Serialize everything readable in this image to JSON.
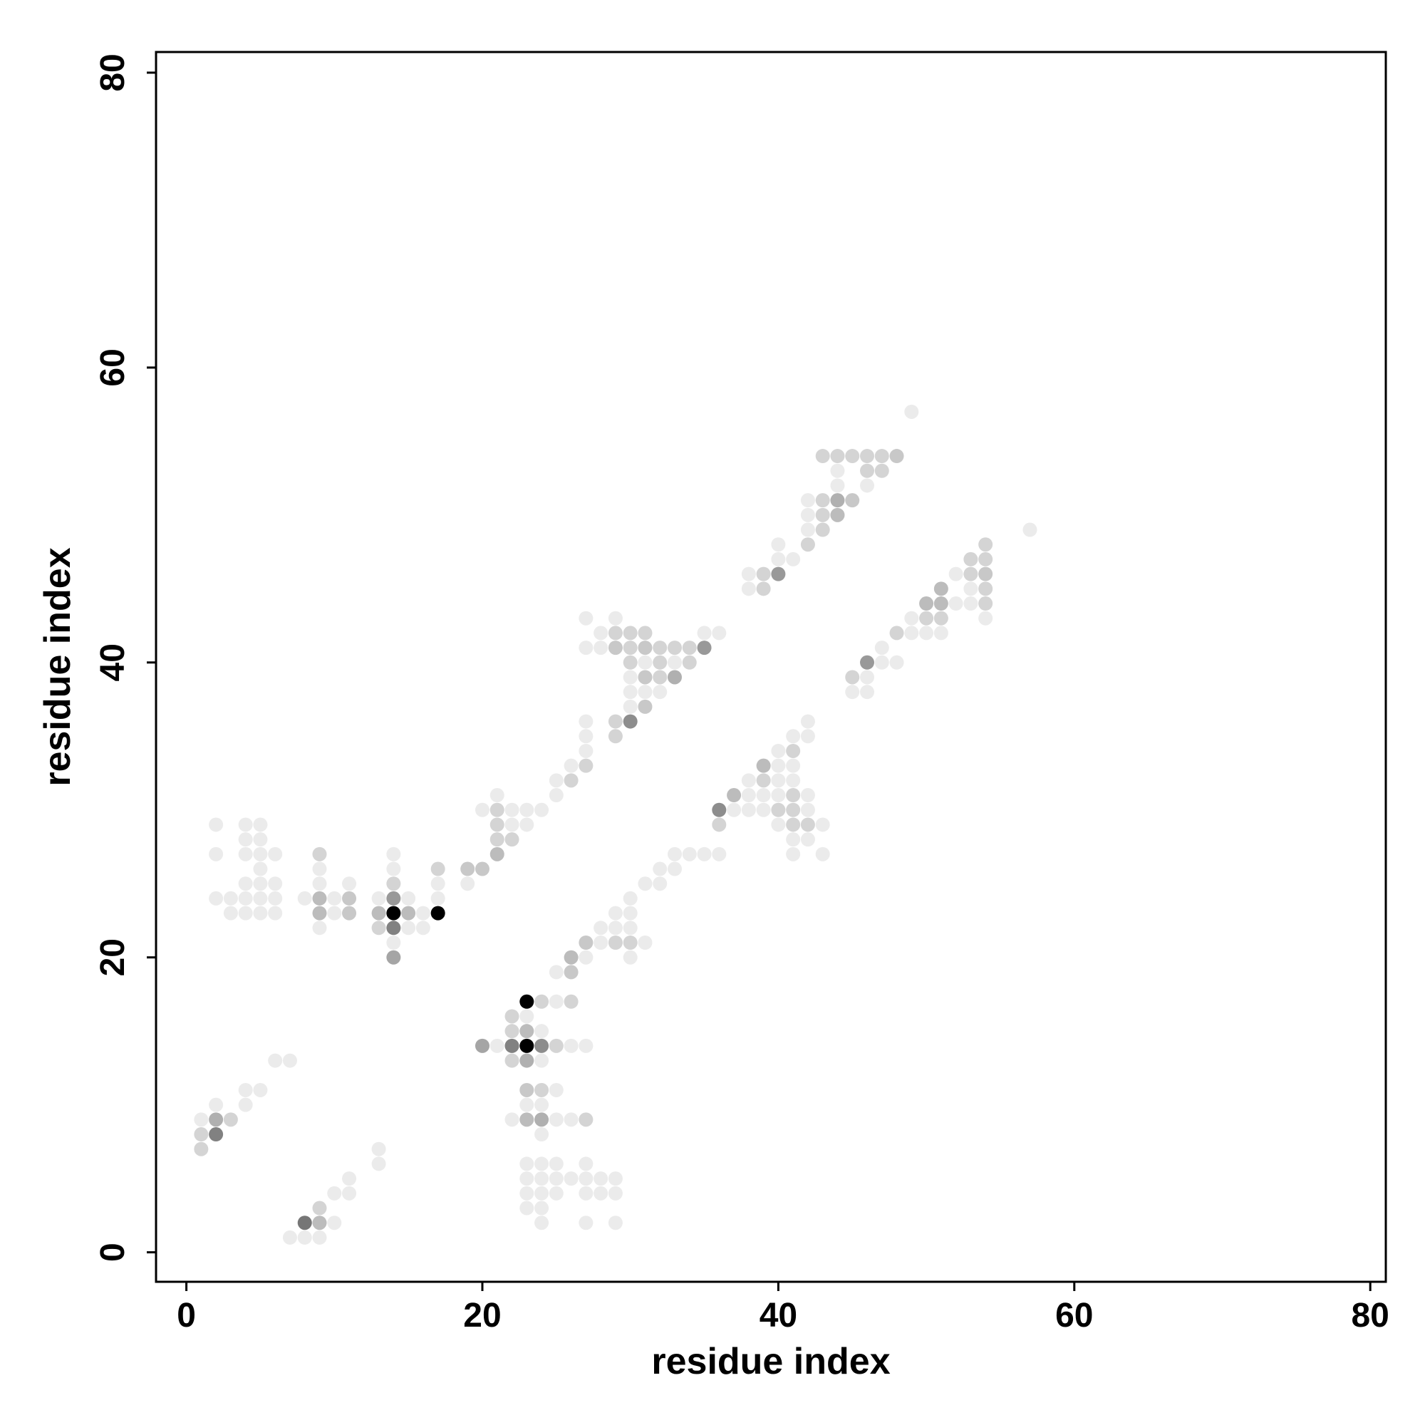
{
  "chart_data": {
    "type": "scatter",
    "x_label": "residue index",
    "y_label": "residue index",
    "xlim": [
      -2.05,
      81.05
    ],
    "ylim": [
      -2,
      81.4
    ],
    "xticks": [
      0,
      20,
      40,
      60,
      80
    ],
    "yticks": [
      0,
      20,
      40,
      60,
      80
    ],
    "color": "#000000",
    "points": [
      [
        49,
        57,
        0
      ],
      [
        43,
        54,
        0.1
      ],
      [
        44,
        54,
        0.1
      ],
      [
        45,
        54,
        0.1
      ],
      [
        46,
        54,
        0.1
      ],
      [
        47,
        54,
        0.1
      ],
      [
        48,
        54,
        0.15
      ],
      [
        44,
        53,
        0
      ],
      [
        46,
        53,
        0.1
      ],
      [
        47,
        53,
        0.1
      ],
      [
        44,
        52,
        0
      ],
      [
        46,
        52,
        0
      ],
      [
        42,
        51,
        0
      ],
      [
        43,
        51,
        0.1
      ],
      [
        44,
        51,
        0.25
      ],
      [
        45,
        51,
        0.15
      ],
      [
        42,
        50,
        0
      ],
      [
        43,
        50,
        0.1
      ],
      [
        44,
        50,
        0.2
      ],
      [
        42,
        49,
        0
      ],
      [
        43,
        49,
        0.1
      ],
      [
        57,
        49,
        0
      ],
      [
        40,
        48,
        0
      ],
      [
        42,
        48,
        0.1
      ],
      [
        54,
        48,
        0.1
      ],
      [
        40,
        47,
        0
      ],
      [
        41,
        47,
        0
      ],
      [
        53,
        47,
        0.1
      ],
      [
        54,
        47,
        0.1
      ],
      [
        38,
        46,
        0
      ],
      [
        39,
        46,
        0.1
      ],
      [
        40,
        46,
        0.35
      ],
      [
        52,
        46,
        0
      ],
      [
        53,
        46,
        0.1
      ],
      [
        54,
        46,
        0.15
      ],
      [
        38,
        45,
        0
      ],
      [
        39,
        45,
        0.1
      ],
      [
        51,
        45,
        0.2
      ],
      [
        53,
        45,
        0
      ],
      [
        54,
        45,
        0.1
      ],
      [
        50,
        44,
        0.2
      ],
      [
        51,
        44,
        0.2
      ],
      [
        52,
        44,
        0
      ],
      [
        53,
        44,
        0
      ],
      [
        54,
        44,
        0.1
      ],
      [
        27,
        43,
        0
      ],
      [
        29,
        43,
        0
      ],
      [
        49,
        43,
        0
      ],
      [
        50,
        43,
        0.1
      ],
      [
        51,
        43,
        0.1
      ],
      [
        54,
        43,
        0
      ],
      [
        28,
        42,
        0
      ],
      [
        29,
        42,
        0.1
      ],
      [
        30,
        42,
        0.1
      ],
      [
        31,
        42,
        0.1
      ],
      [
        35,
        42,
        0
      ],
      [
        36,
        42,
        0
      ],
      [
        48,
        42,
        0.1
      ],
      [
        49,
        42,
        0
      ],
      [
        50,
        42,
        0
      ],
      [
        51,
        42,
        0
      ],
      [
        27,
        41,
        0
      ],
      [
        28,
        41,
        0
      ],
      [
        29,
        41,
        0.15
      ],
      [
        30,
        41,
        0.1
      ],
      [
        31,
        41,
        0.15
      ],
      [
        32,
        41,
        0.1
      ],
      [
        33,
        41,
        0.1
      ],
      [
        34,
        41,
        0.1
      ],
      [
        35,
        41,
        0.35
      ],
      [
        47,
        41,
        0
      ],
      [
        30,
        40,
        0.1
      ],
      [
        31,
        40,
        0
      ],
      [
        32,
        40,
        0.1
      ],
      [
        33,
        40,
        0
      ],
      [
        34,
        40,
        0.1
      ],
      [
        46,
        40,
        0.35
      ],
      [
        47,
        40,
        0
      ],
      [
        48,
        40,
        0
      ],
      [
        30,
        39,
        0
      ],
      [
        31,
        39,
        0.15
      ],
      [
        32,
        39,
        0.1
      ],
      [
        33,
        39,
        0.25
      ],
      [
        45,
        39,
        0.1
      ],
      [
        46,
        39,
        0
      ],
      [
        30,
        38,
        0
      ],
      [
        31,
        38,
        0
      ],
      [
        32,
        38,
        0
      ],
      [
        45,
        38,
        0
      ],
      [
        46,
        38,
        0
      ],
      [
        30,
        37,
        0
      ],
      [
        31,
        37,
        0.15
      ],
      [
        27,
        36,
        0
      ],
      [
        29,
        36,
        0.1
      ],
      [
        30,
        36,
        0.4
      ],
      [
        42,
        36,
        0
      ],
      [
        27,
        35,
        0
      ],
      [
        29,
        35,
        0.1
      ],
      [
        41,
        35,
        0
      ],
      [
        42,
        35,
        0
      ],
      [
        27,
        34,
        0
      ],
      [
        40,
        34,
        0
      ],
      [
        41,
        34,
        0.1
      ],
      [
        26,
        33,
        0
      ],
      [
        27,
        33,
        0.1
      ],
      [
        39,
        33,
        0.2
      ],
      [
        40,
        33,
        0
      ],
      [
        41,
        33,
        0
      ],
      [
        25,
        32,
        0
      ],
      [
        26,
        32,
        0.1
      ],
      [
        38,
        32,
        0
      ],
      [
        39,
        32,
        0.1
      ],
      [
        40,
        32,
        0
      ],
      [
        41,
        32,
        0
      ],
      [
        21,
        31,
        0
      ],
      [
        25,
        31,
        0
      ],
      [
        37,
        31,
        0.2
      ],
      [
        38,
        31,
        0
      ],
      [
        39,
        31,
        0
      ],
      [
        40,
        31,
        0
      ],
      [
        41,
        31,
        0.1
      ],
      [
        42,
        31,
        0
      ],
      [
        20,
        30,
        0
      ],
      [
        21,
        30,
        0.1
      ],
      [
        22,
        30,
        0
      ],
      [
        23,
        30,
        0
      ],
      [
        24,
        30,
        0
      ],
      [
        36,
        30,
        0.4
      ],
      [
        37,
        30,
        0
      ],
      [
        38,
        30,
        0
      ],
      [
        39,
        30,
        0
      ],
      [
        40,
        30,
        0.1
      ],
      [
        41,
        30,
        0.1
      ],
      [
        42,
        30,
        0
      ],
      [
        2,
        29,
        0
      ],
      [
        4,
        29,
        0
      ],
      [
        5,
        29,
        0
      ],
      [
        21,
        29,
        0.1
      ],
      [
        22,
        29,
        0
      ],
      [
        23,
        29,
        0
      ],
      [
        36,
        29,
        0.1
      ],
      [
        40,
        29,
        0
      ],
      [
        41,
        29,
        0.1
      ],
      [
        42,
        29,
        0.1
      ],
      [
        43,
        29,
        0
      ],
      [
        4,
        28,
        0
      ],
      [
        5,
        28,
        0
      ],
      [
        21,
        28,
        0.1
      ],
      [
        22,
        28,
        0.1
      ],
      [
        41,
        28,
        0
      ],
      [
        42,
        28,
        0
      ],
      [
        2,
        27,
        0
      ],
      [
        4,
        27,
        0
      ],
      [
        5,
        27,
        0
      ],
      [
        6,
        27,
        0
      ],
      [
        9,
        27,
        0.1
      ],
      [
        14,
        27,
        0
      ],
      [
        21,
        27,
        0.2
      ],
      [
        33,
        27,
        0
      ],
      [
        34,
        27,
        0
      ],
      [
        35,
        27,
        0
      ],
      [
        36,
        27,
        0
      ],
      [
        41,
        27,
        0
      ],
      [
        43,
        27,
        0
      ],
      [
        5,
        26,
        0
      ],
      [
        9,
        26,
        0
      ],
      [
        14,
        26,
        0
      ],
      [
        17,
        26,
        0.1
      ],
      [
        19,
        26,
        0.15
      ],
      [
        20,
        26,
        0.15
      ],
      [
        32,
        26,
        0
      ],
      [
        33,
        26,
        0
      ],
      [
        4,
        25,
        0
      ],
      [
        5,
        25,
        0
      ],
      [
        6,
        25,
        0
      ],
      [
        9,
        25,
        0
      ],
      [
        11,
        25,
        0
      ],
      [
        14,
        25,
        0.1
      ],
      [
        17,
        25,
        0
      ],
      [
        19,
        25,
        0
      ],
      [
        31,
        25,
        0
      ],
      [
        32,
        25,
        0
      ],
      [
        2,
        24,
        0
      ],
      [
        3,
        24,
        0
      ],
      [
        4,
        24,
        0
      ],
      [
        5,
        24,
        0
      ],
      [
        6,
        24,
        0
      ],
      [
        8,
        24,
        0
      ],
      [
        9,
        24,
        0.2
      ],
      [
        10,
        24,
        0
      ],
      [
        11,
        24,
        0.15
      ],
      [
        13,
        24,
        0
      ],
      [
        14,
        24,
        0.35
      ],
      [
        15,
        24,
        0
      ],
      [
        17,
        24,
        0
      ],
      [
        30,
        24,
        0
      ],
      [
        3,
        23,
        0
      ],
      [
        4,
        23,
        0
      ],
      [
        5,
        23,
        0
      ],
      [
        6,
        23,
        0
      ],
      [
        9,
        23,
        0.2
      ],
      [
        10,
        23,
        0
      ],
      [
        11,
        23,
        0.15
      ],
      [
        13,
        23,
        0.2
      ],
      [
        14,
        23,
        1
      ],
      [
        15,
        23,
        0.2
      ],
      [
        16,
        23,
        0
      ],
      [
        17,
        23,
        1
      ],
      [
        29,
        23,
        0
      ],
      [
        30,
        23,
        0
      ],
      [
        9,
        22,
        0
      ],
      [
        13,
        22,
        0.1
      ],
      [
        14,
        22,
        0.45
      ],
      [
        15,
        22,
        0
      ],
      [
        16,
        22,
        0
      ],
      [
        28,
        22,
        0
      ],
      [
        29,
        22,
        0
      ],
      [
        30,
        22,
        0
      ],
      [
        14,
        21,
        0
      ],
      [
        27,
        21,
        0.15
      ],
      [
        28,
        21,
        0
      ],
      [
        29,
        21,
        0.1
      ],
      [
        30,
        21,
        0.1
      ],
      [
        31,
        21,
        0
      ],
      [
        14,
        20,
        0.3
      ],
      [
        26,
        20,
        0.2
      ],
      [
        27,
        20,
        0
      ],
      [
        30,
        20,
        0
      ],
      [
        25,
        19,
        0
      ],
      [
        26,
        19,
        0.15
      ],
      [
        23,
        17,
        1
      ],
      [
        24,
        17,
        0.1
      ],
      [
        25,
        17,
        0
      ],
      [
        26,
        17,
        0.1
      ],
      [
        22,
        16,
        0.1
      ],
      [
        23,
        16,
        0
      ],
      [
        22,
        15,
        0.1
      ],
      [
        23,
        15,
        0.2
      ],
      [
        24,
        15,
        0
      ],
      [
        20,
        14,
        0.3
      ],
      [
        21,
        14,
        0
      ],
      [
        22,
        14,
        0.45
      ],
      [
        23,
        14,
        1
      ],
      [
        24,
        14,
        0.4
      ],
      [
        25,
        14,
        0.1
      ],
      [
        26,
        14,
        0
      ],
      [
        27,
        14,
        0
      ],
      [
        6,
        13,
        0
      ],
      [
        7,
        13,
        0
      ],
      [
        22,
        13,
        0.1
      ],
      [
        23,
        13,
        0.25
      ],
      [
        24,
        13,
        0
      ],
      [
        4,
        11,
        0
      ],
      [
        5,
        11,
        0
      ],
      [
        23,
        11,
        0.15
      ],
      [
        24,
        11,
        0.1
      ],
      [
        25,
        11,
        0
      ],
      [
        2,
        10,
        0
      ],
      [
        4,
        10,
        0
      ],
      [
        23,
        10,
        0
      ],
      [
        24,
        10,
        0
      ],
      [
        1,
        9,
        0
      ],
      [
        2,
        9,
        0.25
      ],
      [
        3,
        9,
        0.1
      ],
      [
        22,
        9,
        0
      ],
      [
        23,
        9,
        0.2
      ],
      [
        24,
        9,
        0.25
      ],
      [
        25,
        9,
        0
      ],
      [
        26,
        9,
        0
      ],
      [
        27,
        9,
        0.1
      ],
      [
        1,
        8,
        0.1
      ],
      [
        2,
        8,
        0.45
      ],
      [
        24,
        8,
        0
      ],
      [
        1,
        7,
        0.1
      ],
      [
        13,
        7,
        0
      ],
      [
        13,
        6,
        0
      ],
      [
        23,
        6,
        0
      ],
      [
        24,
        6,
        0
      ],
      [
        25,
        6,
        0
      ],
      [
        27,
        6,
        0
      ],
      [
        11,
        5,
        0
      ],
      [
        23,
        5,
        0
      ],
      [
        24,
        5,
        0
      ],
      [
        25,
        5,
        0
      ],
      [
        26,
        5,
        0
      ],
      [
        27,
        5,
        0
      ],
      [
        28,
        5,
        0
      ],
      [
        29,
        5,
        0
      ],
      [
        10,
        4,
        0
      ],
      [
        11,
        4,
        0
      ],
      [
        23,
        4,
        0
      ],
      [
        24,
        4,
        0
      ],
      [
        25,
        4,
        0
      ],
      [
        27,
        4,
        0
      ],
      [
        28,
        4,
        0
      ],
      [
        29,
        4,
        0
      ],
      [
        9,
        3,
        0.1
      ],
      [
        23,
        3,
        0
      ],
      [
        24,
        3,
        0
      ],
      [
        8,
        2,
        0.5
      ],
      [
        9,
        2,
        0.2
      ],
      [
        10,
        2,
        0
      ],
      [
        24,
        2,
        0
      ],
      [
        27,
        2,
        0
      ],
      [
        29,
        2,
        0
      ],
      [
        7,
        1,
        0
      ],
      [
        8,
        1,
        0
      ],
      [
        9,
        1,
        0
      ]
    ]
  }
}
